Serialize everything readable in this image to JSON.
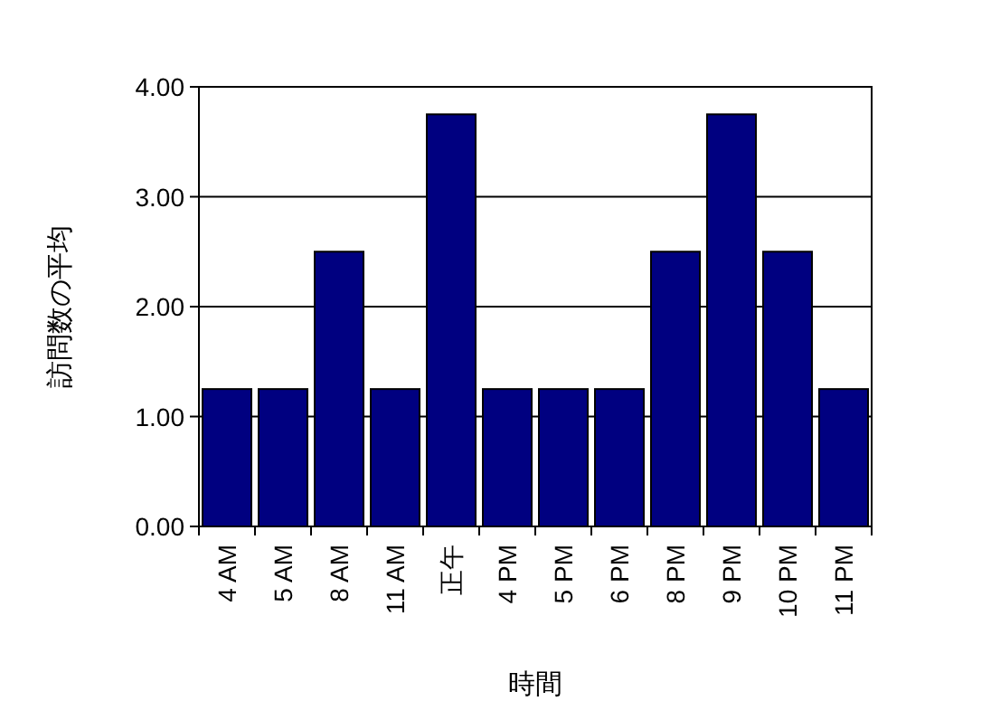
{
  "chart_data": {
    "type": "bar",
    "xlabel": "時間",
    "ylabel": "訪問数の平均",
    "categories": [
      "4 AM",
      "5 AM",
      "8 AM",
      "11 AM",
      "正午",
      "4 PM",
      "5 PM",
      "6 PM",
      "8 PM",
      "9 PM",
      "10 PM",
      "11 PM"
    ],
    "values": [
      1.25,
      1.25,
      2.5,
      1.25,
      3.75,
      1.25,
      1.25,
      1.25,
      2.5,
      3.75,
      2.5,
      1.25
    ],
    "color": "#000080",
    "ylim": [
      0,
      4
    ],
    "yticks": [
      {
        "value": 0,
        "label": "0.00"
      },
      {
        "value": 1,
        "label": "1.00"
      },
      {
        "value": 2,
        "label": "2.00"
      },
      {
        "value": 3,
        "label": "3.00"
      },
      {
        "value": 4,
        "label": "4.00"
      }
    ],
    "grid": "y"
  }
}
